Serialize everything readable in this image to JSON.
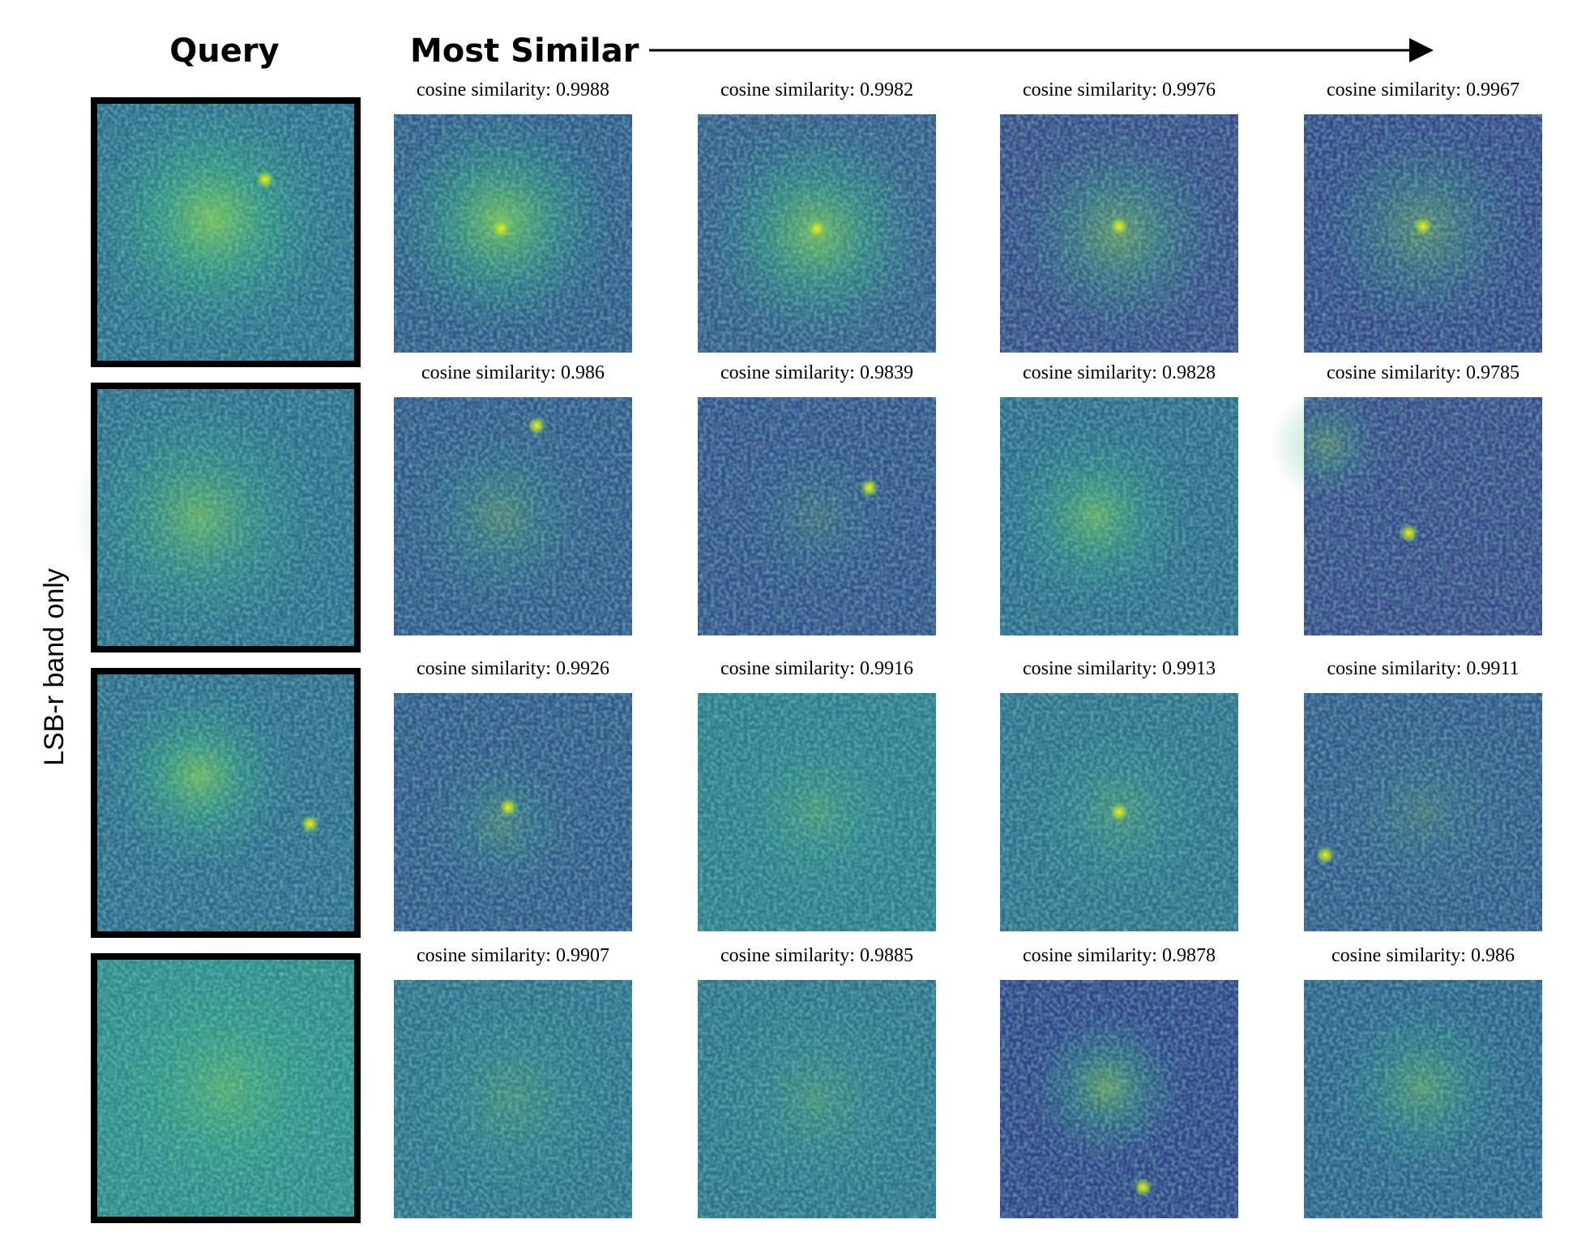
{
  "header": {
    "query": "Query",
    "most_similar": "Most Similar"
  },
  "side_label": "LSB-r band only",
  "rows": [
    {
      "captions": [
        "cosine similarity: 0.9988",
        "cosine similarity: 0.9982",
        "cosine similarity: 0.9976",
        "cosine similarity: 0.9967"
      ]
    },
    {
      "captions": [
        "cosine similarity: 0.986",
        "cosine similarity: 0.9839",
        "cosine similarity: 0.9828",
        "cosine similarity: 0.9785"
      ]
    },
    {
      "captions": [
        "cosine similarity: 0.9926",
        "cosine similarity: 0.9916",
        "cosine similarity: 0.9913",
        "cosine similarity: 0.9911"
      ]
    },
    {
      "captions": [
        "cosine similarity: 0.9907",
        "cosine similarity: 0.9885",
        "cosine similarity: 0.9878",
        "cosine similarity: 0.986"
      ]
    }
  ]
}
